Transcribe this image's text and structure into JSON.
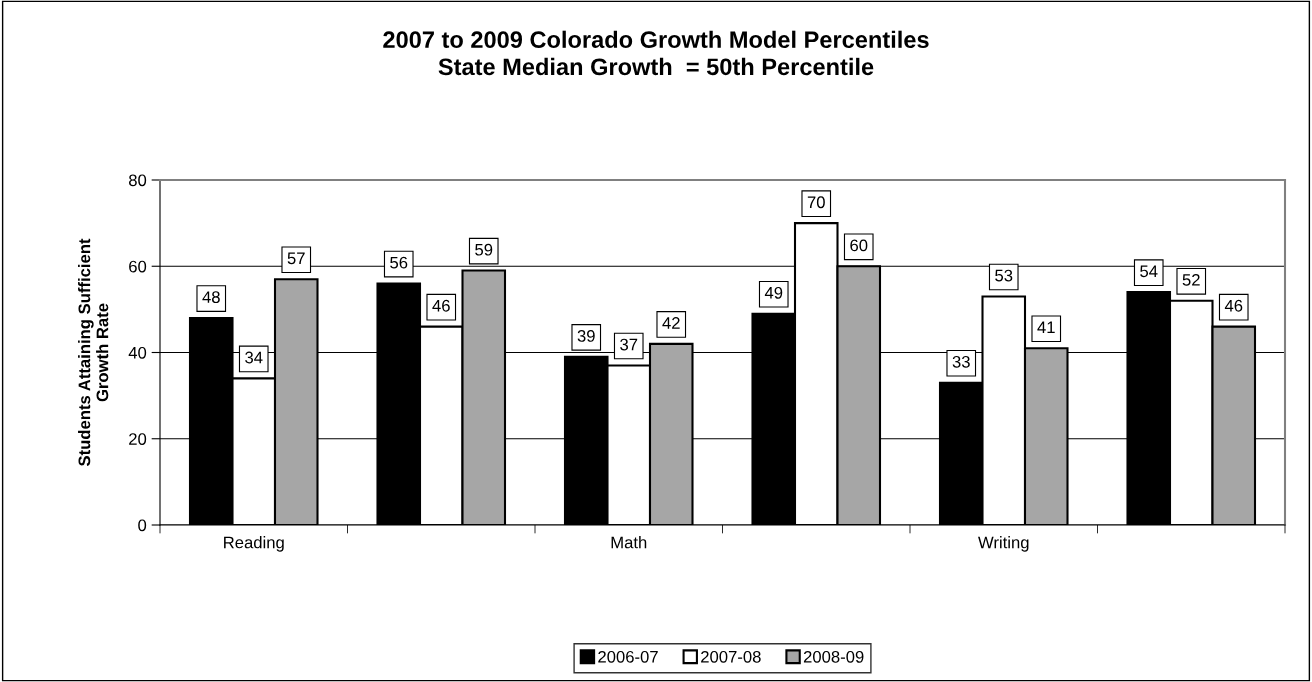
{
  "chart_data": {
    "type": "bar",
    "title": "2007 to 2009 Colorado Growth Model Percentiles\nState Median Growth  = 50th Percentile",
    "ylabel": "Students Attaining Sufficient\nGrowth Rate",
    "categories": [
      "Reading",
      null,
      "Math",
      null,
      "Writing",
      null
    ],
    "series": [
      {
        "name": "2006-07",
        "color": "#000000",
        "values": [
          48,
          56,
          39,
          49,
          33,
          54
        ]
      },
      {
        "name": "2007-08",
        "color": "#ffffff",
        "values": [
          34,
          46,
          37,
          70,
          53,
          52
        ]
      },
      {
        "name": "2008-09",
        "color": "#a6a6a6",
        "values": [
          57,
          59,
          42,
          60,
          41,
          46
        ]
      }
    ],
    "ylim": [
      0,
      80
    ],
    "yticks": [
      0,
      20,
      40,
      60,
      80
    ],
    "grid": "y",
    "legend": "bottom",
    "data_labels": true
  }
}
